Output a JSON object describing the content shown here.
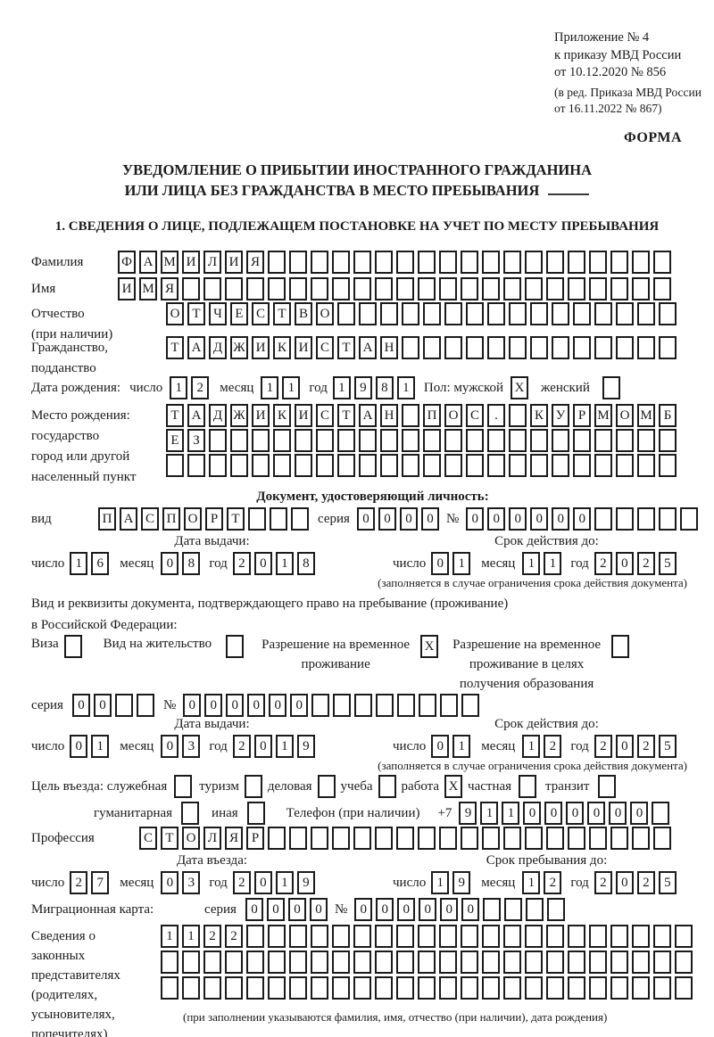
{
  "header": {
    "appendix": [
      "Приложение № 4",
      "к приказу МВД России",
      "от 10.12.2020 № 856"
    ],
    "edition": [
      "(в ред. Приказа МВД России",
      "от 16.11.2022 № 867)"
    ],
    "forma": "ФОРМА"
  },
  "title": {
    "line1": "УВЕДОМЛЕНИЕ О ПРИБЫТИИ ИНОСТРАННОГО ГРАЖДАНИНА",
    "line2": "ИЛИ ЛИЦА БЕЗ ГРАЖДАНСТВА В МЕСТО ПРЕБЫВАНИЯ"
  },
  "section1": "1. СВЕДЕНИЯ О ЛИЦЕ, ПОДЛЕЖАЩЕМ ПОСТАНОВКЕ НА УЧЕТ ПО МЕСТУ ПРЕБЫВАНИЯ",
  "labels": {
    "surname": "Фамилия",
    "name": "Имя",
    "patronymic": "Отчество",
    "patronymic2": "(при наличии)",
    "citizenship": "Гражданство,",
    "citizenship2": "подданство",
    "birth_date": "Дата рождения:",
    "day": "число",
    "month": "месяц",
    "year": "год",
    "sex_male": "Пол: мужской",
    "sex_female": "женский",
    "birth_place": "Место рождения:",
    "birth_place2": "государство",
    "birth_place3": "город или другой",
    "birth_place4": "населенный пункт",
    "identity_doc": "Документ, удостоверяющий личность:",
    "kind": "вид",
    "series": "серия",
    "number": "№",
    "issue_date": "Дата выдачи:",
    "valid_until": "Срок действия до:",
    "valid_note": "(заполняется в случае ограничения срока действия документа)",
    "residence_doc1": "Вид и реквизиты документа, подтверждающего право на пребывание (проживание)",
    "residence_doc2": "в Российской Федерации:",
    "visa": "Виза",
    "residence_permit": "Вид на жительство",
    "temp_permit1": "Разрешение на временное",
    "temp_permit2": "проживание",
    "temp_edu1": "Разрешение на временное",
    "temp_edu2": "проживание в целях",
    "temp_edu3": "получения образования",
    "purpose": "Цель въезда: служебная",
    "tourism": "туризм",
    "business": "деловая",
    "study": "учеба",
    "work": "работа",
    "private": "частная",
    "transit": "транзит",
    "humanitarian": "гуманитарная",
    "other": "иная",
    "phone": "Телефон (при наличии)",
    "phone_prefix": "+7",
    "profession": "Профессия",
    "entry_date": "Дата въезда:",
    "stay_until": "Срок пребывания до:",
    "migration_card": "Миграционная карта:",
    "representatives": [
      "Сведения о",
      "законных",
      "представителях",
      "(родителях,",
      "усыновителях,",
      "попечителях)"
    ],
    "representatives_note": "(при заполнении указываются фамилия, имя, отчество (при наличии), дата рождения)"
  },
  "fields": {
    "surname": {
      "value": "ФАМИЛИЯ",
      "count": 26
    },
    "name": {
      "value": "ИМЯ",
      "count": 26
    },
    "patronymic": {
      "value": "ОТЧЕСТВО",
      "count": 24
    },
    "citizenship": {
      "value": "ТАДЖИКИСТАН",
      "count": 24
    },
    "birth_day": {
      "value": "12",
      "count": 2
    },
    "birth_month": {
      "value": "11",
      "count": 2
    },
    "birth_year": {
      "value": "1981",
      "count": 4
    },
    "sex_male": {
      "value": "X",
      "count": 1
    },
    "sex_female": {
      "value": "",
      "count": 1
    },
    "birth_place_row1": {
      "value": "ТАДЖИКИСТАН ПОС. КУРМОМБ",
      "count": 24
    },
    "birth_place_row2": {
      "value": "ЕЗ",
      "count": 24
    },
    "birth_place_row3": {
      "value": "",
      "count": 24
    },
    "doc_kind": {
      "value": "ПАСПОРТ",
      "count": 10
    },
    "doc_series": {
      "value": "0000",
      "count": 4
    },
    "doc_number": {
      "value": "000000",
      "count": 11
    },
    "doc_issue_day": {
      "value": "16",
      "count": 2
    },
    "doc_issue_month": {
      "value": "08",
      "count": 2
    },
    "doc_issue_year": {
      "value": "2018",
      "count": 4
    },
    "doc_valid_day": {
      "value": "01",
      "count": 2
    },
    "doc_valid_month": {
      "value": "11",
      "count": 2
    },
    "doc_valid_year": {
      "value": "2025",
      "count": 4
    },
    "visa_check": {
      "value": "",
      "count": 1
    },
    "residence_permit_check": {
      "value": "",
      "count": 1
    },
    "temp_permit_check": {
      "value": "X",
      "count": 1
    },
    "temp_edu_check": {
      "value": "",
      "count": 1
    },
    "permit_series": {
      "value": "00",
      "count": 4
    },
    "permit_number": {
      "value": "000000",
      "count": 14
    },
    "permit_issue_day": {
      "value": "01",
      "count": 2
    },
    "permit_issue_month": {
      "value": "03",
      "count": 2
    },
    "permit_issue_year": {
      "value": "2019",
      "count": 4
    },
    "permit_valid_day": {
      "value": "01",
      "count": 2
    },
    "permit_valid_month": {
      "value": "12",
      "count": 2
    },
    "permit_valid_year": {
      "value": "2025",
      "count": 4
    },
    "purpose_official": {
      "value": "",
      "count": 1
    },
    "purpose_tourism": {
      "value": "",
      "count": 1
    },
    "purpose_business": {
      "value": "",
      "count": 1
    },
    "purpose_study": {
      "value": "",
      "count": 1
    },
    "purpose_work": {
      "value": "X",
      "count": 1
    },
    "purpose_private": {
      "value": "",
      "count": 1
    },
    "purpose_transit": {
      "value": "",
      "count": 1
    },
    "purpose_humanitarian": {
      "value": "",
      "count": 1
    },
    "purpose_other": {
      "value": "",
      "count": 1
    },
    "phone": {
      "value": "911000000",
      "count": 10
    },
    "profession": {
      "value": "СТОЛЯР",
      "count": 25
    },
    "entry_day": {
      "value": "27",
      "count": 2
    },
    "entry_month": {
      "value": "03",
      "count": 2
    },
    "entry_year": {
      "value": "2019",
      "count": 4
    },
    "stay_day": {
      "value": "19",
      "count": 2
    },
    "stay_month": {
      "value": "12",
      "count": 2
    },
    "stay_year": {
      "value": "2025",
      "count": 4
    },
    "mig_series": {
      "value": "0000",
      "count": 4
    },
    "mig_number": {
      "value": "000000",
      "count": 10
    },
    "rep_row1": {
      "value": "1122",
      "count": 25
    },
    "rep_row2": {
      "value": "",
      "count": 25
    },
    "rep_row3": {
      "value": "",
      "count": 25
    }
  }
}
